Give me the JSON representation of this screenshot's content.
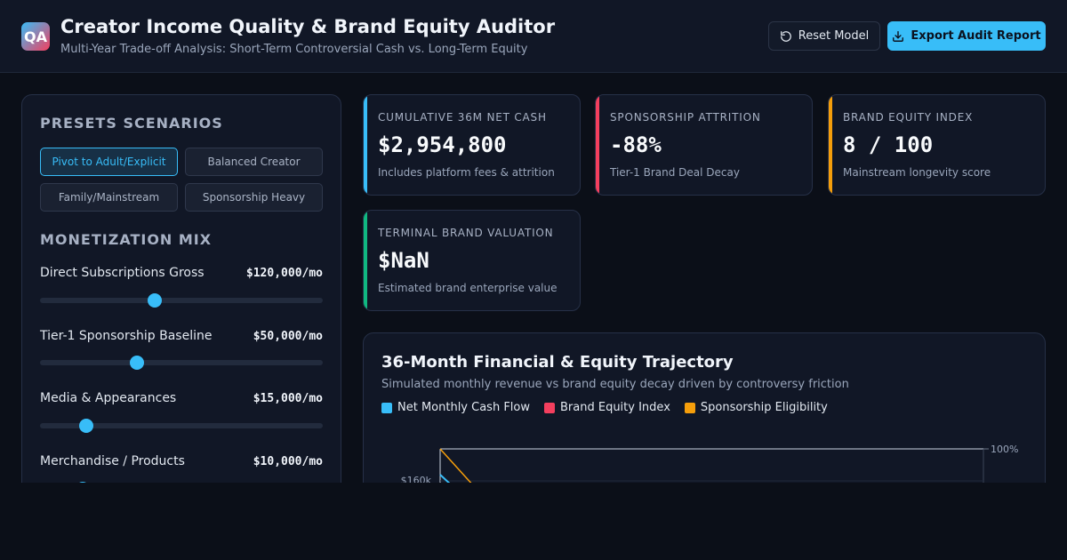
{
  "header": {
    "logo_text": "QA",
    "title": "Creator Income Quality & Brand Equity Auditor",
    "subtitle": "Multi-Year Trade-off Analysis: Short-Term Controversial Cash vs. Long-Term Equity",
    "reset_label": "Reset Model",
    "export_label": "Export Audit Report",
    "reset_icon": "rotate-ccw-icon",
    "export_icon": "download-icon"
  },
  "sidebar": {
    "presets_title": "PRESETS SCENARIOS",
    "presets": [
      {
        "label": "Pivot to Adult/Explicit",
        "active": true
      },
      {
        "label": "Balanced Creator",
        "active": false
      },
      {
        "label": "Family/Mainstream",
        "active": false
      },
      {
        "label": "Sponsorship Heavy",
        "active": false
      }
    ],
    "mix_title": "MONETIZATION MIX",
    "sliders": [
      {
        "label": "Direct Subscriptions Gross",
        "value": "$120,000/mo",
        "level": 0.405
      },
      {
        "label": "Tier-1 Sponsorship Baseline",
        "value": "$50,000/mo",
        "level": 0.342
      },
      {
        "label": "Media & Appearances",
        "value": "$15,000/mo",
        "level": 0.165
      },
      {
        "label": "Merchandise / Products",
        "value": "$10,000/mo",
        "level": 0.15
      }
    ]
  },
  "kpis": [
    {
      "label": "CUMULATIVE 36M NET CASH",
      "value": "$2,954,800",
      "note": "Includes platform fees & attrition",
      "color": "#38bdf8"
    },
    {
      "label": "SPONSORSHIP ATTRITION",
      "value": "-88%",
      "note": "Tier-1 Brand Deal Decay",
      "color": "#f43f5e"
    },
    {
      "label": "BRAND EQUITY INDEX",
      "value": "8 / 100",
      "note": "Mainstream longevity score",
      "color": "#f59e0b"
    },
    {
      "label": "TERMINAL BRAND VALUATION",
      "value": "$NaN",
      "note": "Estimated brand enterprise value",
      "color": "#10b981"
    }
  ],
  "chart": {
    "title": "36-Month Financial & Equity Trajectory",
    "subtitle": "Simulated monthly revenue vs brand equity decay driven by controversy friction",
    "legend": [
      {
        "name": "Net Monthly Cash Flow",
        "color": "#38bdf8"
      },
      {
        "name": "Brand Equity Index",
        "color": "#f43f5e"
      },
      {
        "name": "Sponsorship Eligibility",
        "color": "#f59e0b"
      }
    ]
  },
  "chart_data": {
    "type": "line",
    "title": "36-Month Financial & Equity Trajectory",
    "left_axis_ticks": [
      "$160k"
    ],
    "right_axis_ticks": [
      "100%"
    ],
    "series": [
      {
        "name": "Net Monthly Cash Flow",
        "color": "#38bdf8",
        "axis": "left",
        "x": [
          0
        ],
        "values": [
          160000
        ]
      },
      {
        "name": "Sponsorship Eligibility",
        "color": "#f59e0b",
        "axis": "right",
        "x": [
          0
        ],
        "values": [
          100
        ]
      }
    ]
  }
}
